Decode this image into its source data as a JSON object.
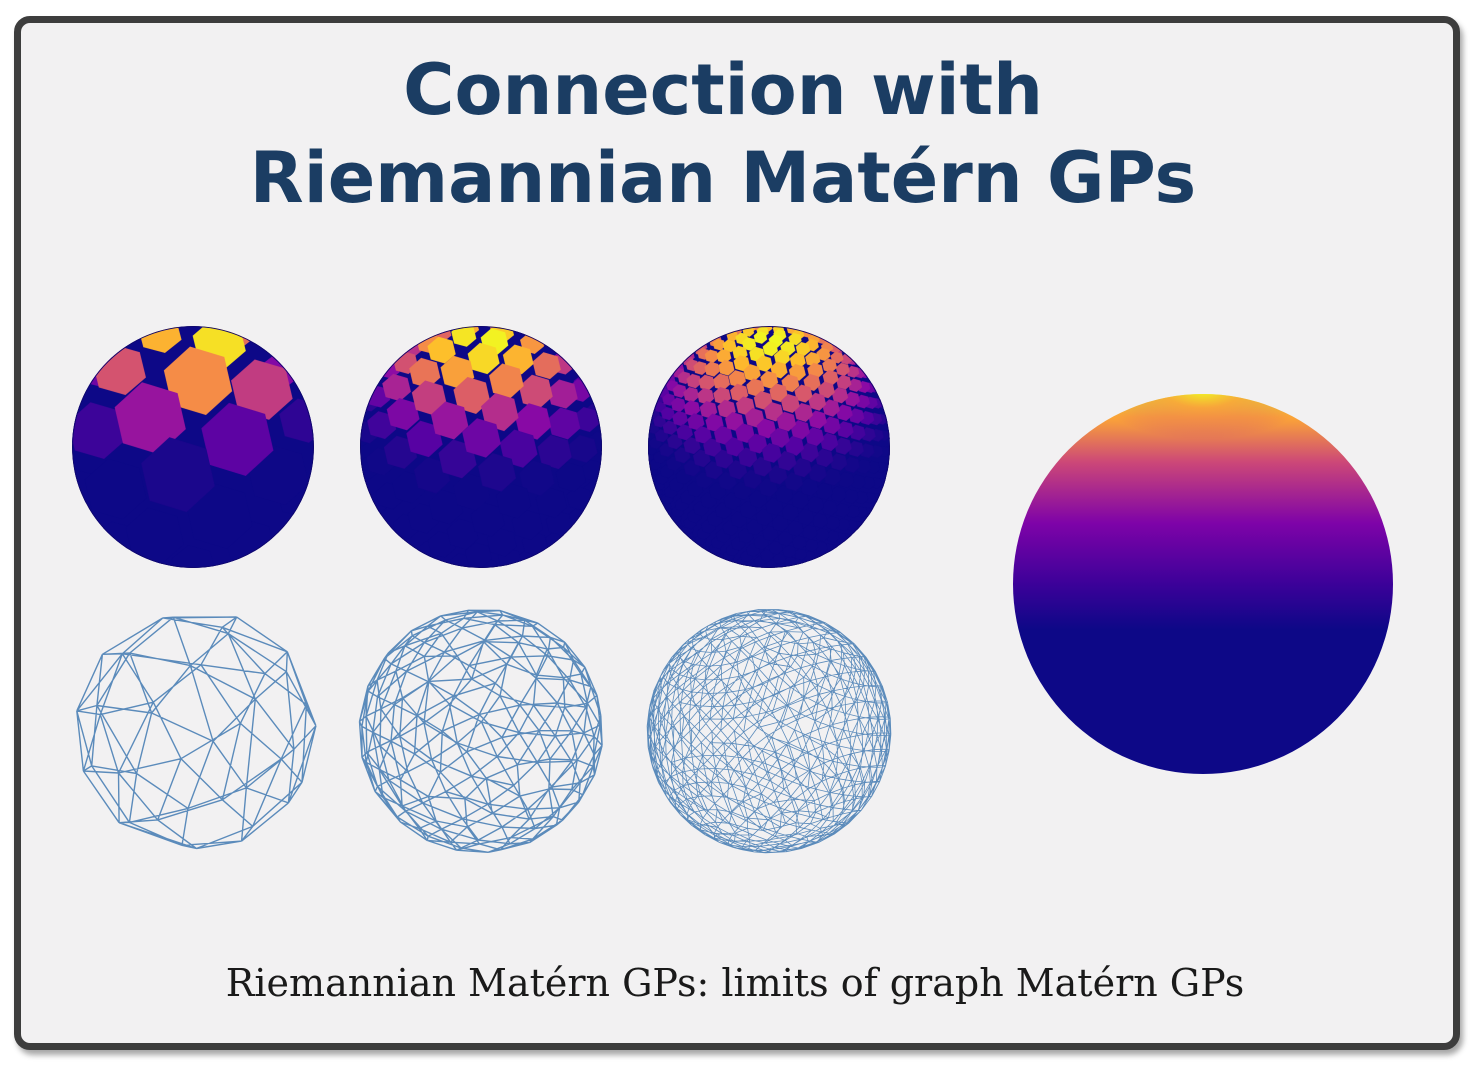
{
  "title": {
    "line1": "Connection with",
    "line2": "Riemannian Matérn GPs"
  },
  "caption": "Riemannian Matérn GPs: limits of graph Matérn GPs",
  "colors": {
    "title": "#1b3d63",
    "panel_bg": "#f2f1f2",
    "panel_border": "#3d3d3d",
    "wire": "#4a7fb5",
    "plasma_low": "#0d0887",
    "plasma_mid": "#7e03a8",
    "plasma_high": "#f0f921"
  },
  "figure": {
    "colored_meshes": [
      "coarse-mesh-sphere",
      "medium-mesh-sphere",
      "fine-mesh-sphere"
    ],
    "wireframes": [
      "coarse-wireframe",
      "medium-wireframe",
      "fine-wireframe"
    ],
    "limit": "smooth-sphere"
  }
}
